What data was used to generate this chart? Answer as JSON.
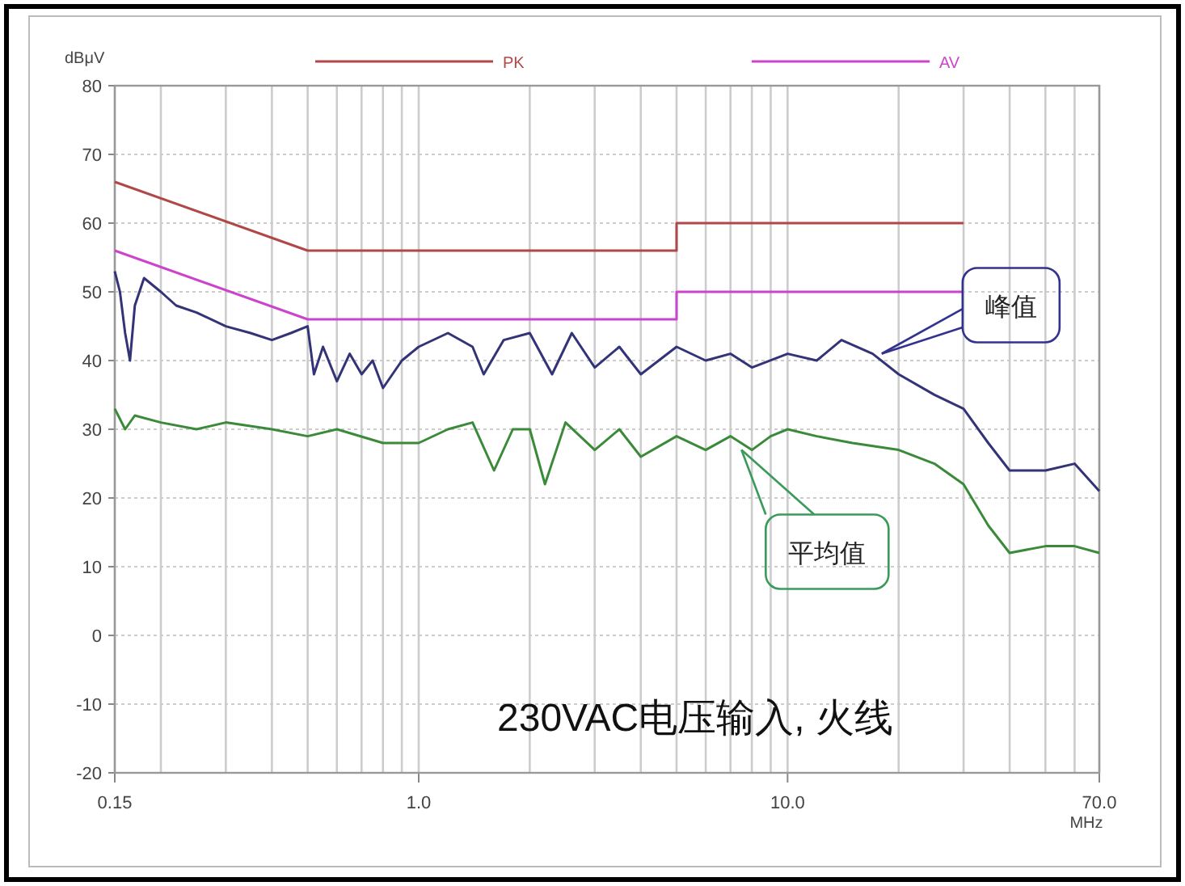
{
  "chart_data": {
    "type": "line",
    "ylabel": "dBμV",
    "xlabel": "MHz",
    "log": "x",
    "grid": true,
    "legend": "top",
    "line_style": "solid",
    "marker": "none",
    "xlim": [
      0.15,
      70
    ],
    "ylim": [
      -20,
      80
    ],
    "xticks": [
      {
        "value": 0.15,
        "label": "0.15"
      },
      {
        "value": 0.2,
        "label": null
      },
      {
        "value": 0.3,
        "label": null
      },
      {
        "value": 0.4,
        "label": null
      },
      {
        "value": 0.5,
        "label": null
      },
      {
        "value": 0.6,
        "label": null
      },
      {
        "value": 0.7,
        "label": null
      },
      {
        "value": 0.8,
        "label": null
      },
      {
        "value": 0.9,
        "label": null
      },
      {
        "value": 1,
        "label": "1.0"
      },
      {
        "value": 2,
        "label": null
      },
      {
        "value": 3,
        "label": null
      },
      {
        "value": 4,
        "label": null
      },
      {
        "value": 5,
        "label": null
      },
      {
        "value": 6,
        "label": null
      },
      {
        "value": 7,
        "label": null
      },
      {
        "value": 8,
        "label": null
      },
      {
        "value": 9,
        "label": null
      },
      {
        "value": 10,
        "label": "10.0"
      },
      {
        "value": 20,
        "label": null
      },
      {
        "value": 30,
        "label": null
      },
      {
        "value": 40,
        "label": null
      },
      {
        "value": 50,
        "label": null
      },
      {
        "value": 60,
        "label": null
      },
      {
        "value": 70,
        "label": "70.0"
      }
    ],
    "yticks": [
      -20,
      -10,
      0,
      10,
      20,
      30,
      40,
      50,
      60,
      70,
      80
    ],
    "series": [
      {
        "name": "PK",
        "color": "#b04848",
        "x": [
          0.15,
          0.5,
          5,
          5,
          30
        ],
        "values": [
          66,
          56,
          56,
          60,
          60
        ]
      },
      {
        "name": "AV",
        "color": "#cc44cc",
        "x": [
          0.15,
          0.5,
          5,
          5,
          30
        ],
        "values": [
          56,
          46,
          46,
          50,
          50
        ]
      },
      {
        "color": "#333377",
        "x": [
          0.15,
          0.155,
          0.16,
          0.165,
          0.17,
          0.18,
          0.2,
          0.22,
          0.25,
          0.3,
          0.35,
          0.4,
          0.45,
          0.5,
          0.52,
          0.55,
          0.6,
          0.65,
          0.7,
          0.75,
          0.8,
          0.9,
          1.0,
          1.2,
          1.4,
          1.5,
          1.7,
          2.0,
          2.3,
          2.6,
          3.0,
          3.5,
          4.0,
          5.0,
          6.0,
          7.0,
          8.0,
          10,
          12,
          14,
          17,
          20,
          25,
          30,
          35,
          40,
          50,
          60,
          70
        ],
        "values": [
          53,
          50,
          44,
          40,
          48,
          52,
          50,
          48,
          47,
          45,
          44,
          43,
          44,
          45,
          38,
          42,
          37,
          41,
          38,
          40,
          36,
          40,
          42,
          44,
          42,
          38,
          43,
          44,
          38,
          44,
          39,
          42,
          38,
          42,
          40,
          41,
          39,
          41,
          40,
          43,
          41,
          38,
          35,
          33,
          28,
          24,
          24,
          25,
          21
        ]
      },
      {
        "color": "#3a8a3a",
        "x": [
          0.15,
          0.16,
          0.17,
          0.2,
          0.25,
          0.3,
          0.4,
          0.5,
          0.6,
          0.8,
          1.0,
          1.2,
          1.4,
          1.6,
          1.8,
          2.0,
          2.2,
          2.5,
          3.0,
          3.5,
          4.0,
          5.0,
          6.0,
          7.0,
          8.0,
          9.0,
          10,
          12,
          15,
          20,
          25,
          30,
          35,
          40,
          50,
          60,
          70
        ],
        "values": [
          33,
          30,
          32,
          31,
          30,
          31,
          30,
          29,
          30,
          28,
          28,
          30,
          31,
          24,
          30,
          30,
          22,
          31,
          27,
          30,
          26,
          29,
          27,
          29,
          27,
          29,
          30,
          29,
          28,
          27,
          25,
          22,
          16,
          12,
          13,
          13,
          12
        ]
      }
    ],
    "annotations": [
      {
        "text": "峰值",
        "x": 18,
        "y": 41
      },
      {
        "text": "平均值",
        "x": 7.5,
        "y": 27
      },
      "230VAC电压输入, 火线"
    ]
  }
}
